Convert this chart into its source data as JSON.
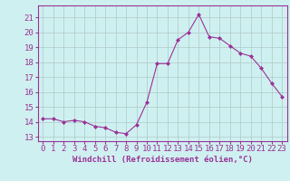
{
  "x": [
    0,
    1,
    2,
    3,
    4,
    5,
    6,
    7,
    8,
    9,
    10,
    11,
    12,
    13,
    14,
    15,
    16,
    17,
    18,
    19,
    20,
    21,
    22,
    23
  ],
  "y": [
    14.2,
    14.2,
    14.0,
    14.1,
    14.0,
    13.7,
    13.6,
    13.3,
    13.2,
    13.8,
    15.3,
    17.9,
    17.9,
    19.5,
    20.0,
    21.2,
    19.7,
    19.6,
    19.1,
    18.6,
    18.4,
    17.6,
    16.6,
    15.7
  ],
  "line_color": "#993399",
  "marker": "D",
  "marker_size": 2.0,
  "bg_color": "#cff0f0",
  "grid_color": "#b0c8c8",
  "ylabel_ticks": [
    13,
    14,
    15,
    16,
    17,
    18,
    19,
    20,
    21
  ],
  "ylim": [
    12.7,
    21.8
  ],
  "xlim": [
    -0.5,
    23.5
  ],
  "xlabel": "Windchill (Refroidissement éolien,°C)",
  "xlabel_fontsize": 6.5,
  "tick_fontsize": 6.5,
  "tick_color": "#993399",
  "spine_color": "#993399"
}
